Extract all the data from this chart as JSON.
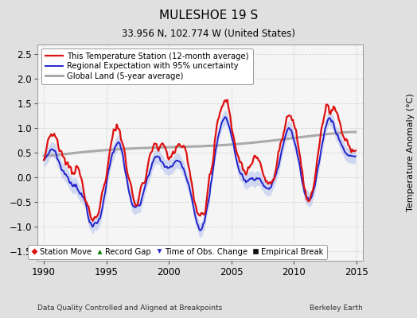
{
  "title": "MULESHOE 19 S",
  "subtitle": "33.956 N, 102.774 W (United States)",
  "xlabel_left": "Data Quality Controlled and Aligned at Breakpoints",
  "xlabel_right": "Berkeley Earth",
  "ylabel": "Temperature Anomaly (°C)",
  "xlim": [
    1989.5,
    2015.5
  ],
  "ylim": [
    -1.7,
    2.7
  ],
  "yticks": [
    -1.5,
    -1.0,
    -0.5,
    0.0,
    0.5,
    1.0,
    1.5,
    2.0,
    2.5
  ],
  "xticks": [
    1990,
    1995,
    2000,
    2005,
    2010,
    2015
  ],
  "background_color": "#e0e0e0",
  "plot_bg_color": "#f5f5f5",
  "red_color": "#dd1111",
  "blue_color": "#2222cc",
  "blue_fill": "#aabbee",
  "gray_color": "#aaaaaa",
  "grid_color": "#cccccc"
}
